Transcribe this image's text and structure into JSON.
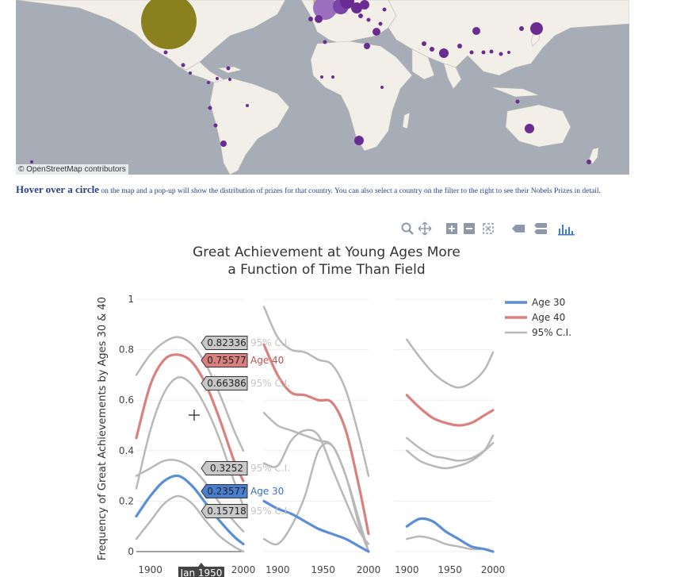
{
  "map": {
    "attribution": "© OpenStreetMap contributors",
    "ocean_color": "#a6adb6",
    "land_color": "#f2efe9",
    "bubble_color": "#6b2c91"
  },
  "caption": {
    "lead": "Hover over a circle",
    "text": " on the map and a pop-up will show the distribution of prizes for that country.  You can also select a country on the filter to the right to see their Nobels Prizes in detail."
  },
  "toolbar": {
    "icons": [
      "zoom-icon",
      "pan-icon",
      "zoom-in-icon",
      "zoom-out-icon",
      "autoscale-icon",
      "hover-closest-icon",
      "hover-compare-icon",
      "plotly-logo-icon"
    ]
  },
  "chart_data": {
    "type": "line",
    "title": [
      "Great Achievement at Young Ages More",
      "a Function of Time Than Field"
    ],
    "ylabel": "Frequency of Great Achievements by Ages 30 & 40",
    "ylim": [
      0,
      1
    ],
    "yticks": [
      0,
      0.2,
      0.4,
      0.6,
      0.8,
      1
    ],
    "xlim": [
      1885,
      2000
    ],
    "xticks": [
      1900,
      1950,
      2000
    ],
    "grid": true,
    "legend_position": "top-right",
    "colors": {
      "age30": "#5a8fd8",
      "age40": "#d9817f",
      "ci": "#b8b8b8"
    },
    "legend": [
      "Age 30",
      "Age 40",
      "95% C.I."
    ],
    "panels": [
      {
        "x": [
          1885,
          1900,
          1915,
          1930,
          1945,
          1960,
          1975,
          1990,
          2000
        ],
        "series": [
          {
            "name": "Age 40",
            "values": [
              0.45,
              0.66,
              0.76,
              0.78,
              0.75,
              0.66,
              0.52,
              0.36,
              0.28
            ]
          },
          {
            "name": "Age 40 95% C.I.",
            "role": "ci",
            "values": [
              0.7,
              0.78,
              0.83,
              0.85,
              0.82,
              0.74,
              0.62,
              0.48,
              0.4
            ]
          },
          {
            "name": "Age 40 95% C.I.",
            "role": "ci",
            "values": [
              0.25,
              0.48,
              0.63,
              0.69,
              0.66,
              0.57,
              0.44,
              0.28,
              0.18
            ]
          },
          {
            "name": "Age 30",
            "values": [
              0.14,
              0.22,
              0.28,
              0.3,
              0.26,
              0.19,
              0.12,
              0.06,
              0.03
            ]
          },
          {
            "name": "Age 30 95% C.I.",
            "role": "ci",
            "values": [
              0.3,
              0.33,
              0.36,
              0.36,
              0.33,
              0.27,
              0.19,
              0.12,
              0.08
            ]
          },
          {
            "name": "Age 30 95% C.I.",
            "role": "ci",
            "values": [
              0.05,
              0.12,
              0.19,
              0.22,
              0.19,
              0.12,
              0.06,
              0.02,
              0.0
            ]
          }
        ]
      },
      {
        "x": [
          1885,
          1900,
          1915,
          1930,
          1945,
          1960,
          1975,
          1990,
          2000
        ],
        "series": [
          {
            "name": "Age 40",
            "values": [
              0.82,
              0.7,
              0.63,
              0.62,
              0.6,
              0.59,
              0.48,
              0.25,
              0.07
            ]
          },
          {
            "name": "Age 40 95% C.I.",
            "role": "ci",
            "values": [
              0.97,
              0.85,
              0.8,
              0.79,
              0.76,
              0.74,
              0.64,
              0.45,
              0.3
            ]
          },
          {
            "name": "Age 40 95% C.I.",
            "role": "ci",
            "values": [
              0.55,
              0.5,
              0.48,
              0.46,
              0.44,
              0.42,
              0.3,
              0.1,
              0.0
            ]
          },
          {
            "name": "Age 30",
            "values": [
              0.2,
              0.17,
              0.15,
              0.12,
              0.09,
              0.07,
              0.05,
              0.02,
              0.0
            ]
          },
          {
            "name": "Age 30 95% C.I.",
            "role": "ci",
            "values": [
              0.35,
              0.34,
              0.44,
              0.48,
              0.46,
              0.33,
              0.2,
              0.08,
              0.03
            ]
          },
          {
            "name": "Age 30 95% C.I.",
            "role": "ci",
            "values": [
              0.05,
              0.03,
              0.1,
              0.22,
              0.4,
              0.42,
              0.3,
              0.12,
              0.0
            ]
          }
        ]
      },
      {
        "x": [
          1900,
          1915,
          1930,
          1945,
          1960,
          1975,
          1990,
          2000
        ],
        "series": [
          {
            "name": "Age 40",
            "values": [
              0.62,
              0.57,
              0.53,
              0.51,
              0.5,
              0.51,
              0.54,
              0.56
            ]
          },
          {
            "name": "Age 40 95% C.I.",
            "role": "ci",
            "values": [
              0.84,
              0.77,
              0.71,
              0.67,
              0.65,
              0.67,
              0.72,
              0.79
            ]
          },
          {
            "name": "Age 40 95% C.I.",
            "role": "ci",
            "values": [
              0.4,
              0.36,
              0.34,
              0.33,
              0.34,
              0.36,
              0.4,
              0.46
            ]
          },
          {
            "name": "Age 30",
            "values": [
              0.1,
              0.13,
              0.12,
              0.08,
              0.05,
              0.02,
              0.01,
              0.0
            ]
          },
          {
            "name": "Age 30 95% C.I.",
            "role": "ci",
            "values": [
              0.45,
              0.41,
              0.38,
              0.37,
              0.36,
              0.37,
              0.4,
              0.43
            ]
          },
          {
            "name": "Age 30 95% C.I.",
            "role": "ci",
            "values": [
              0.05,
              0.06,
              0.05,
              0.03,
              0.02,
              0.01,
              0.01,
              0.0
            ]
          }
        ]
      }
    ],
    "hover": {
      "x_label": "Jan 1950",
      "labels": [
        {
          "value": "0.82336",
          "name": "95% C.I.",
          "kind": "ci"
        },
        {
          "value": "0.75577",
          "name": "Age 40",
          "kind": "age40"
        },
        {
          "value": "0.66386",
          "name": "95% C.I.",
          "kind": "ci"
        },
        {
          "value": "0.3252",
          "name": "95% C.I.",
          "kind": "ci"
        },
        {
          "value": "0.23577",
          "name": "Age 30",
          "kind": "age30"
        },
        {
          "value": "0.15718",
          "name": "95% C.I.",
          "kind": "ci"
        }
      ]
    }
  }
}
